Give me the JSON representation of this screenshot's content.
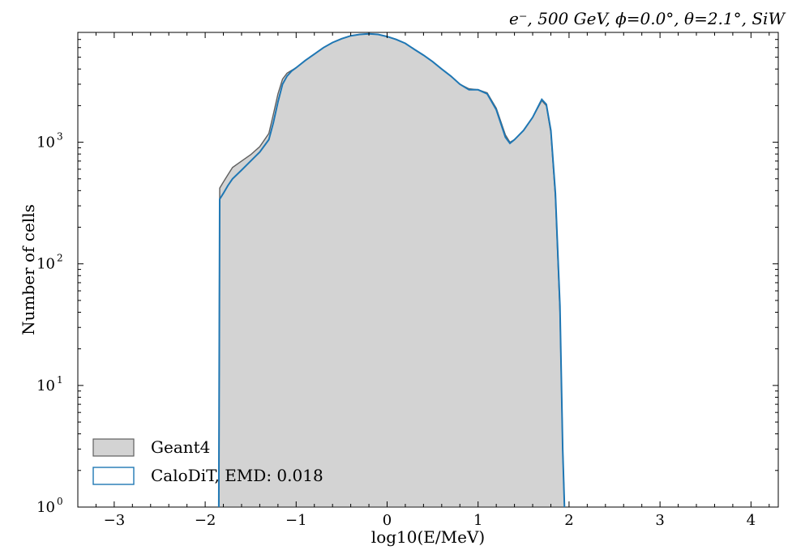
{
  "chart_data": {
    "type": "histogram",
    "title": "e⁻, 500 GeV, ϕ=0.0°, θ=2.1°, SiW",
    "xlabel": "log10(E/MeV)",
    "ylabel": "Number of cells",
    "xlim": [
      -3.4,
      4.3
    ],
    "ylim": [
      1,
      8000
    ],
    "yscale": "log",
    "grid": false,
    "legend_position": "lower-left",
    "x_ticks": [
      -3,
      -2,
      -1,
      0,
      1,
      2,
      3,
      4
    ],
    "x_tick_labels": [
      "−3",
      "−2",
      "−1",
      "0",
      "1",
      "2",
      "3",
      "4"
    ],
    "y_ticks": [
      {
        "value": 1,
        "base": "10",
        "exp": "0"
      },
      {
        "value": 10,
        "base": "10",
        "exp": "1"
      },
      {
        "value": 100,
        "base": "10",
        "exp": "2"
      },
      {
        "value": 1000,
        "base": "10",
        "exp": "3"
      }
    ],
    "series": [
      {
        "name": "Geant4",
        "style": "filled",
        "fill": "#d3d3d3",
        "edge": "#5f5f5f",
        "x": [
          -1.85,
          -1.84,
          -1.8,
          -1.75,
          -1.7,
          -1.6,
          -1.5,
          -1.4,
          -1.3,
          -1.25,
          -1.2,
          -1.15,
          -1.1,
          -1.05,
          -1.0,
          -0.9,
          -0.8,
          -0.7,
          -0.6,
          -0.5,
          -0.4,
          -0.3,
          -0.2,
          -0.1,
          0.0,
          0.1,
          0.2,
          0.3,
          0.4,
          0.5,
          0.6,
          0.7,
          0.8,
          0.9,
          1.0,
          1.1,
          1.2,
          1.3,
          1.35,
          1.4,
          1.5,
          1.6,
          1.7,
          1.75,
          1.8,
          1.85,
          1.9,
          1.93,
          1.95
        ],
        "values": [
          1,
          420,
          470,
          540,
          620,
          700,
          790,
          920,
          1180,
          1700,
          2500,
          3300,
          3700,
          3900,
          4100,
          4700,
          5300,
          6000,
          6600,
          7100,
          7500,
          7700,
          7800,
          7700,
          7400,
          7000,
          6500,
          5800,
          5200,
          4600,
          4000,
          3500,
          3000,
          2750,
          2700,
          2550,
          1900,
          1150,
          1000,
          1050,
          1250,
          1600,
          2200,
          2000,
          1200,
          350,
          40,
          3,
          1
        ]
      },
      {
        "name": "CaloDiT, EMD: 0.018",
        "style": "step",
        "color": "#1f77b4",
        "x": [
          -1.85,
          -1.84,
          -1.8,
          -1.75,
          -1.7,
          -1.6,
          -1.5,
          -1.4,
          -1.3,
          -1.25,
          -1.2,
          -1.15,
          -1.1,
          -1.05,
          -1.0,
          -0.9,
          -0.8,
          -0.7,
          -0.6,
          -0.5,
          -0.4,
          -0.3,
          -0.2,
          -0.1,
          0.0,
          0.1,
          0.2,
          0.3,
          0.4,
          0.5,
          0.6,
          0.7,
          0.8,
          0.9,
          1.0,
          1.1,
          1.2,
          1.3,
          1.35,
          1.4,
          1.5,
          1.6,
          1.7,
          1.75,
          1.8,
          1.85,
          1.9,
          1.93,
          1.95
        ],
        "values": [
          1,
          340,
          380,
          440,
          500,
          590,
          700,
          830,
          1050,
          1450,
          2150,
          3000,
          3500,
          3850,
          4100,
          4700,
          5300,
          6000,
          6600,
          7100,
          7500,
          7700,
          7800,
          7700,
          7400,
          7000,
          6500,
          5800,
          5200,
          4600,
          4000,
          3500,
          3000,
          2700,
          2700,
          2500,
          1850,
          1100,
          980,
          1050,
          1250,
          1600,
          2250,
          2050,
          1250,
          380,
          45,
          3,
          1
        ]
      }
    ]
  }
}
